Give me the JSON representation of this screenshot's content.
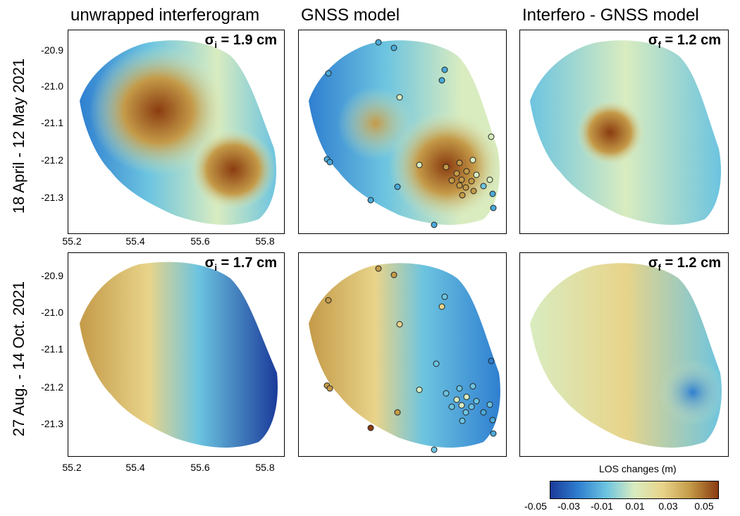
{
  "columns": {
    "c1": "unwrapped interferogram",
    "c2": "GNSS model",
    "c3": "Interfero - GNSS model"
  },
  "rows": {
    "r1": "18 April - 12 May 2021",
    "r2": "27 Aug. - 14 Oct. 2021"
  },
  "sigma": {
    "r1_interf": {
      "symbol": "σ",
      "sub": "i",
      "value": " = 1.9 cm"
    },
    "r1_resid": {
      "symbol": "σ",
      "sub": "f",
      "value": " = 1.2 cm"
    },
    "r2_interf": {
      "symbol": "σ",
      "sub": "i",
      "value": " = 1.7 cm"
    },
    "r2_resid": {
      "symbol": "σ",
      "sub": "f",
      "value": " = 1.2 cm"
    }
  },
  "axes": {
    "y_ticks": [
      "-20.9",
      "-21.0",
      "-21.1",
      "-21.2",
      "-21.3"
    ],
    "x_ticks": [
      "55.2",
      "55.4",
      "55.6",
      "55.8"
    ]
  },
  "colorbar": {
    "title": "LOS changes (m)",
    "ticks": [
      "-0.05",
      "-0.03",
      "-0.01",
      "0.01",
      "0.03",
      "0.05"
    ],
    "colors": [
      "#1a3b9a",
      "#2f7fd0",
      "#6cc4e0",
      "#d9ecc0",
      "#e8d48a",
      "#c49a48",
      "#8a3c10"
    ]
  }
}
